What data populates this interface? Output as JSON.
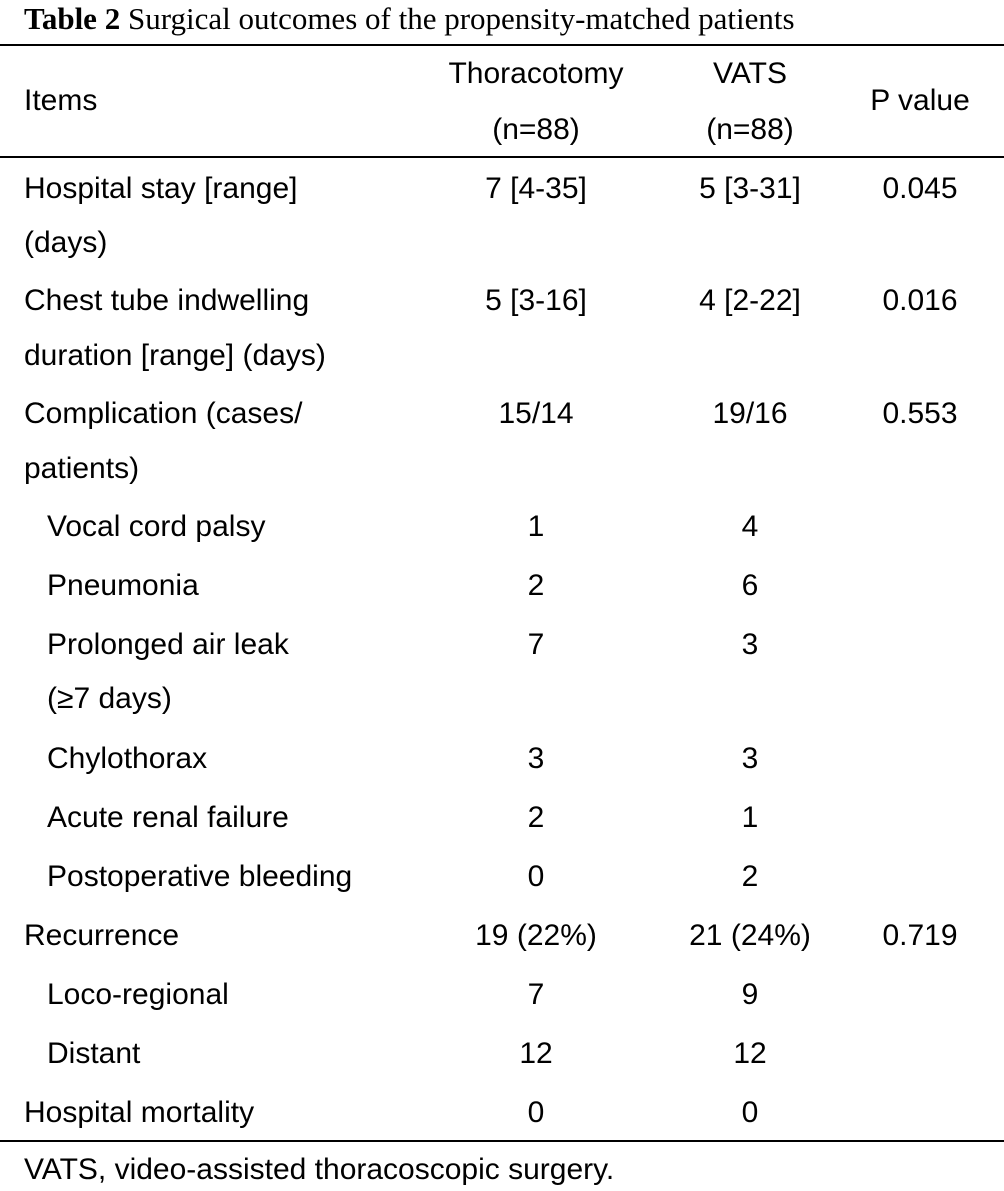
{
  "caption": {
    "label": "Table 2",
    "text": "Surgical outcomes of the propensity-matched patients"
  },
  "header": {
    "items": "Items",
    "thoracotomy": "Thoracotomy",
    "thoracotomy_n": "(n=88)",
    "vats": "VATS",
    "vats_n": "(n=88)",
    "p_value": "P value"
  },
  "rows": [
    {
      "item": "Hospital stay [range]",
      "item2": "(days)",
      "thoracotomy": "7 [4-35]",
      "vats": "5 [3-31]",
      "p": "0.045"
    },
    {
      "item": "Chest tube indwelling",
      "item2": "duration [range] (days)",
      "thoracotomy": "5 [3-16]",
      "vats": "4 [2-22]",
      "p": "0.016"
    },
    {
      "item": "Complication (cases/",
      "item2": "patients)",
      "thoracotomy": "15/14",
      "vats": "19/16",
      "p": "0.553"
    },
    {
      "item": "Vocal cord palsy",
      "thoracotomy": "1",
      "vats": "4",
      "p": ""
    },
    {
      "item": "Pneumonia",
      "thoracotomy": "2",
      "vats": "6",
      "p": ""
    },
    {
      "item": "Prolonged air leak",
      "item2": "(≥7 days)",
      "thoracotomy": "7",
      "vats": "3",
      "p": ""
    },
    {
      "item": "Chylothorax",
      "thoracotomy": "3",
      "vats": "3",
      "p": ""
    },
    {
      "item": "Acute renal failure",
      "thoracotomy": "2",
      "vats": "1",
      "p": ""
    },
    {
      "item": "Postoperative bleeding",
      "thoracotomy": "0",
      "vats": "2",
      "p": ""
    },
    {
      "item": "Recurrence",
      "thoracotomy": "19 (22%)",
      "vats": "21 (24%)",
      "p": "0.719"
    },
    {
      "item": "Loco-regional",
      "thoracotomy": "7",
      "vats": "9",
      "p": ""
    },
    {
      "item": "Distant",
      "thoracotomy": "12",
      "vats": "12",
      "p": ""
    },
    {
      "item": "Hospital mortality",
      "thoracotomy": "0",
      "vats": "0",
      "p": ""
    }
  ],
  "footnote": "VATS, video-assisted thoracoscopic surgery."
}
